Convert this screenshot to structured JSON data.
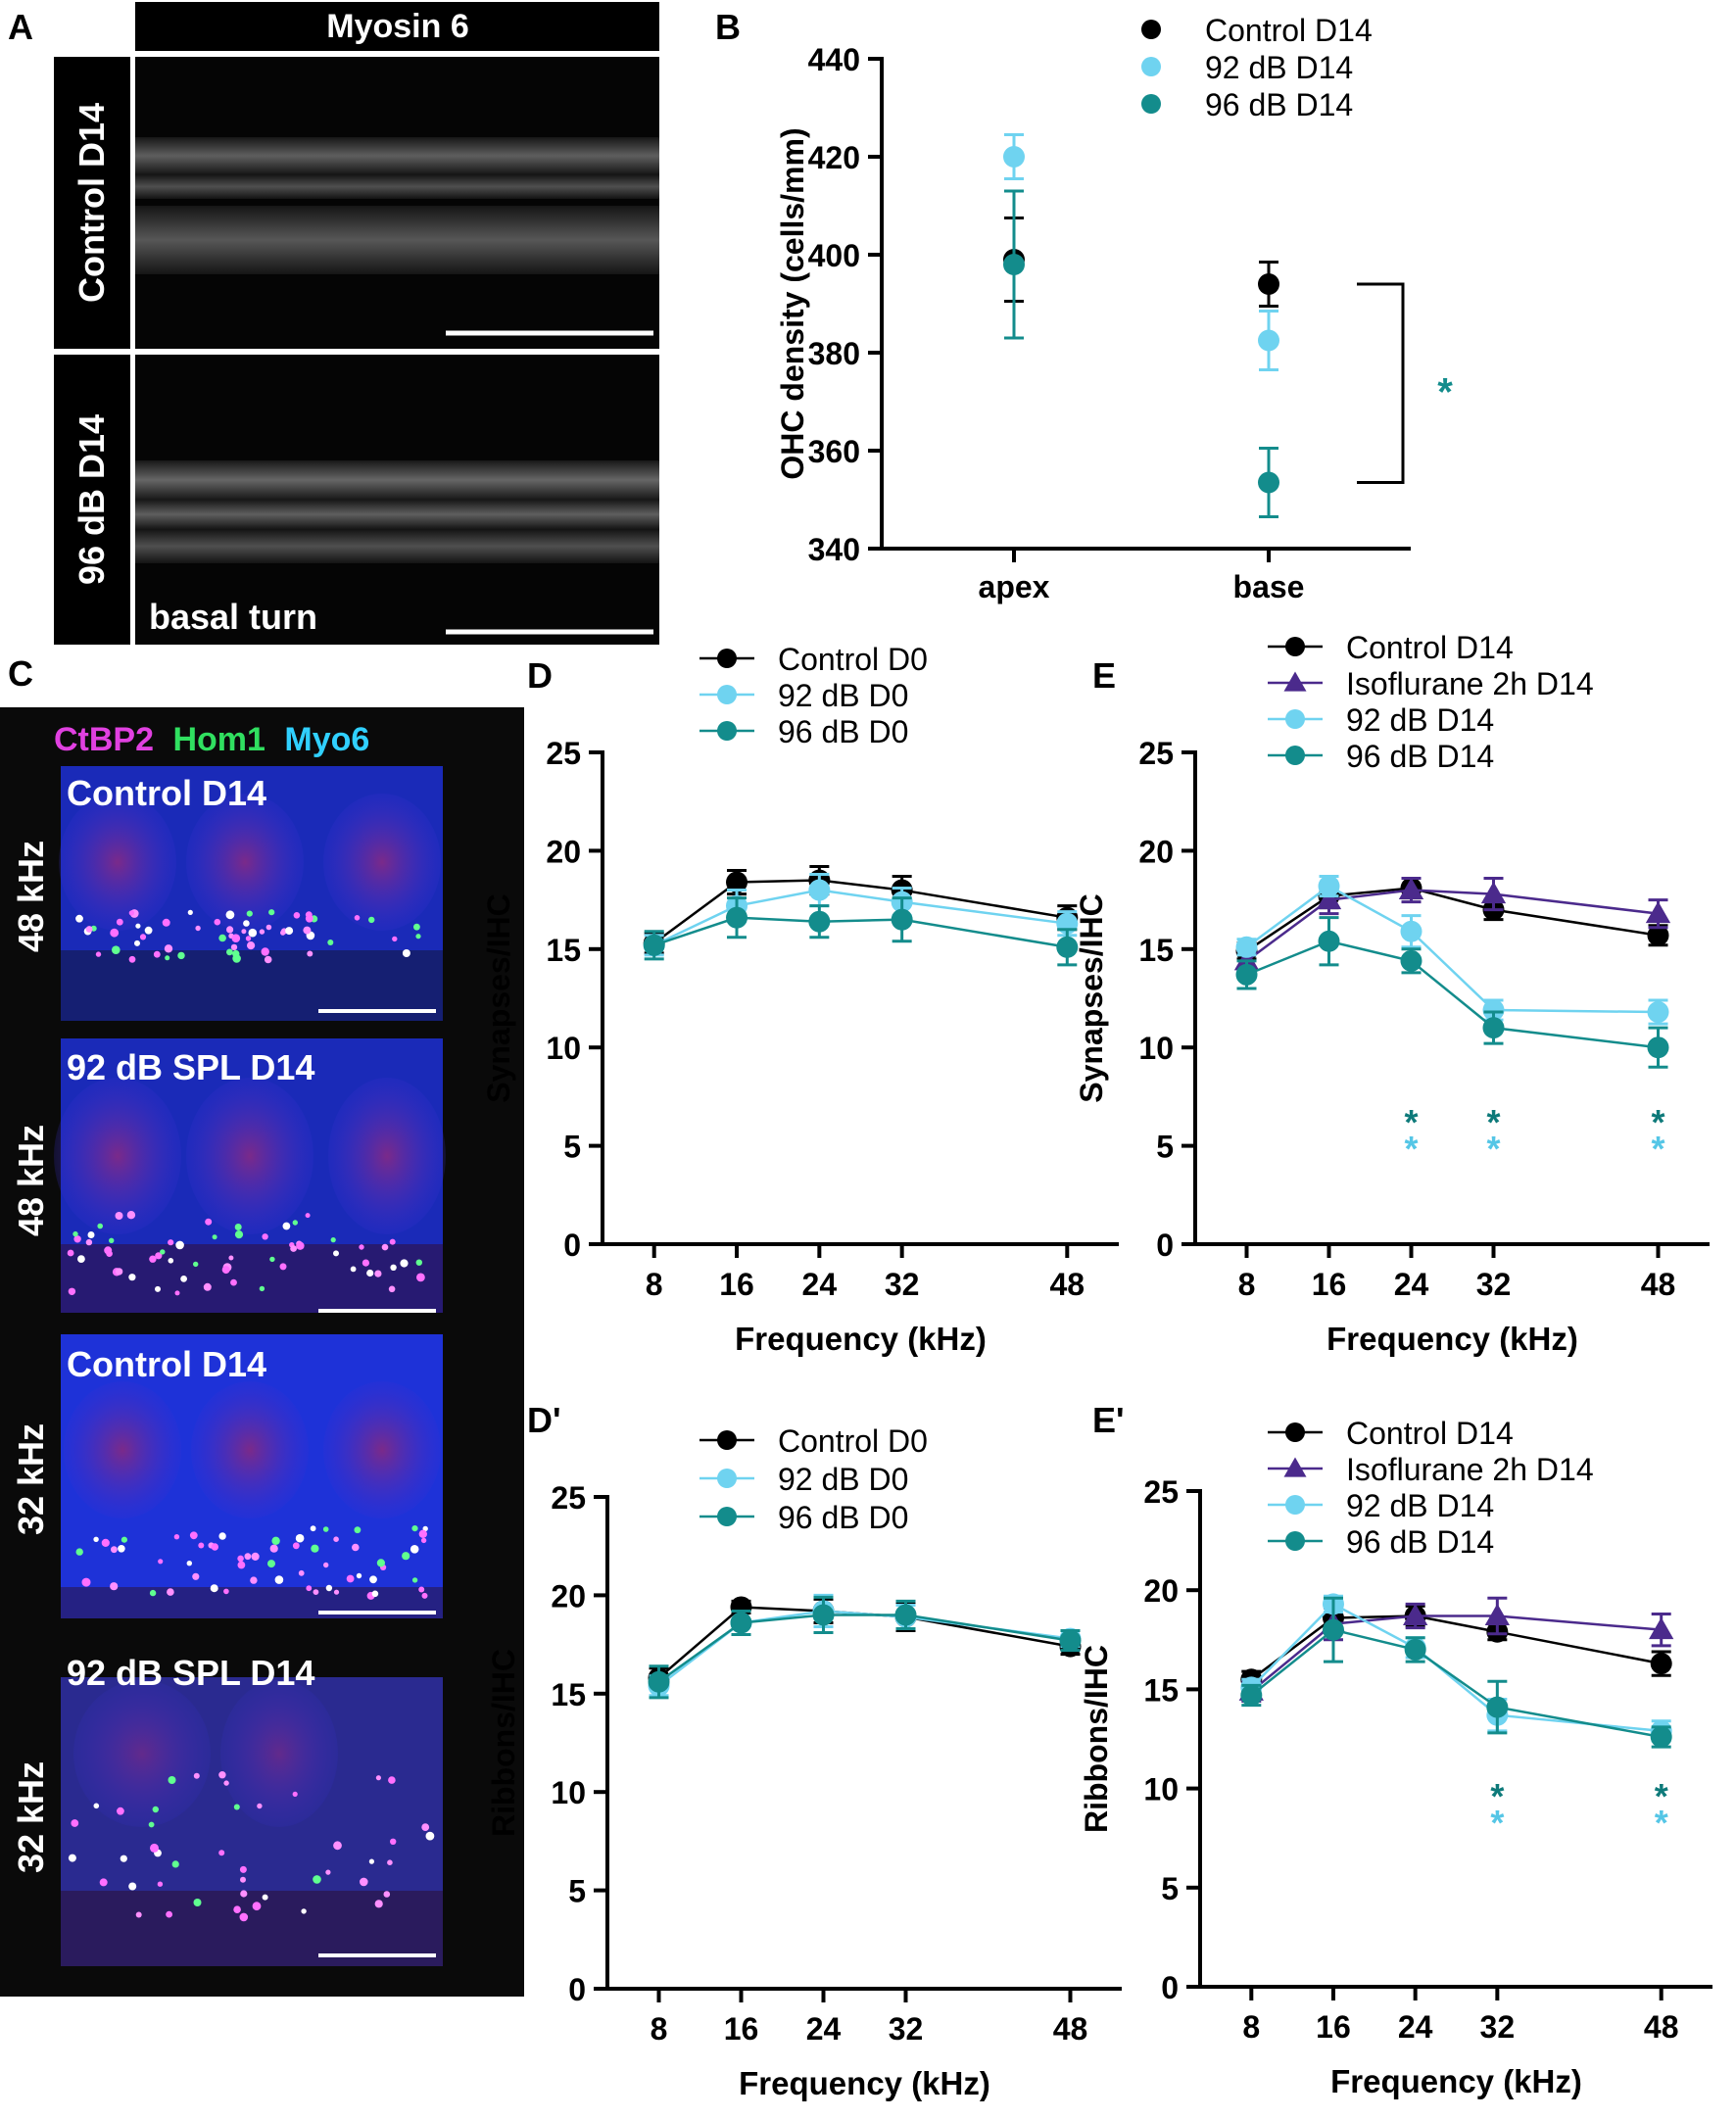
{
  "colors": {
    "control": "#000000",
    "isoflurane": "#4b2a8c",
    "db92": "#6fd3f0",
    "db96": "#138c8c",
    "star_db92": "#55c6e6",
    "star_db96": "#0e7a7a",
    "micrograph_bg": "#0a0a0a"
  },
  "panel_a": {
    "letter": "A",
    "stain": "Myosin 6",
    "rows": [
      "Control D14",
      "96 dB D14"
    ],
    "region": "basal turn"
  },
  "panel_c": {
    "letter": "C",
    "stains": [
      {
        "name": "CtBP2",
        "color": "#e040e0"
      },
      {
        "name": "Hom1",
        "color": "#30e060"
      },
      {
        "name": "Myo6",
        "color": "#30d0ff"
      }
    ],
    "rows": [
      {
        "freq": "48 kHz",
        "condition": "Control D14"
      },
      {
        "freq": "48 kHz",
        "condition": "92 dB SPL D14"
      },
      {
        "freq": "32 kHz",
        "condition": "Control D14"
      },
      {
        "freq": "32 kHz",
        "condition": "92 dB SPL D14"
      }
    ]
  },
  "chart_data": [
    {
      "id": "B",
      "type": "scatter",
      "letter": "B",
      "title": "",
      "ylabel": "OHC density (cells/mm)",
      "xlabel": "",
      "categories": [
        "apex",
        "base"
      ],
      "ylim": [
        340,
        440
      ],
      "yticks": [
        340,
        360,
        380,
        400,
        420,
        440
      ],
      "series": [
        {
          "name": "Control D14",
          "color_key": "control",
          "values": [
            399,
            394
          ],
          "err": [
            8.5,
            4.5
          ]
        },
        {
          "name": "92 dB D14",
          "color_key": "db92",
          "values": [
            420,
            382.5
          ],
          "err": [
            4.5,
            6
          ]
        },
        {
          "name": "96 dB D14",
          "color_key": "db96",
          "values": [
            398,
            353.5
          ],
          "err": [
            15,
            7
          ]
        }
      ],
      "bracket": {
        "category": "base",
        "from": 394,
        "to": 353.5
      },
      "significance": [
        {
          "label": "*",
          "color_key": "db96"
        }
      ]
    },
    {
      "id": "D",
      "type": "line",
      "letter": "D",
      "ylabel": "Synapses/IHC",
      "xlabel": "Frequency (kHz)",
      "x": [
        8,
        16,
        24,
        32,
        48
      ],
      "xticks": [
        8,
        16,
        24,
        32,
        48
      ],
      "xlim": [
        3,
        53
      ],
      "ylim": [
        0,
        25
      ],
      "yticks": [
        0,
        5,
        10,
        15,
        20,
        25
      ],
      "series": [
        {
          "name": "Control D0",
          "color_key": "control",
          "marker": "circle",
          "values": [
            15.3,
            18.4,
            18.5,
            18.0,
            16.6
          ],
          "err": [
            0.5,
            0.6,
            0.7,
            0.7,
            0.6
          ]
        },
        {
          "name": "92 dB D0",
          "color_key": "db92",
          "marker": "circle",
          "values": [
            15.2,
            17.2,
            18.0,
            17.4,
            16.3
          ],
          "err": [
            0.5,
            0.8,
            0.8,
            0.7,
            0.6
          ]
        },
        {
          "name": "96 dB D0",
          "color_key": "db96",
          "marker": "circle",
          "values": [
            15.2,
            16.6,
            16.4,
            16.5,
            15.1
          ],
          "err": [
            0.7,
            1.0,
            0.8,
            1.1,
            0.9
          ]
        }
      ],
      "stars": []
    },
    {
      "id": "E",
      "type": "line",
      "letter": "E",
      "ylabel": "Synapses/IHC",
      "xlabel": "Frequency (kHz)",
      "x": [
        8,
        16,
        24,
        32,
        48
      ],
      "xticks": [
        8,
        16,
        24,
        32,
        48
      ],
      "xlim": [
        3,
        53
      ],
      "ylim": [
        0,
        25
      ],
      "yticks": [
        0,
        5,
        10,
        15,
        20,
        25
      ],
      "series": [
        {
          "name": "Control D14",
          "color_key": "control",
          "marker": "circle",
          "values": [
            14.9,
            17.7,
            18.1,
            17.0,
            15.7
          ],
          "err": [
            0.4,
            0.6,
            0.5,
            0.5,
            0.5
          ]
        },
        {
          "name": "Isoflurane 2h D14",
          "color_key": "isoflurane",
          "marker": "triangle",
          "values": [
            14.4,
            17.5,
            18.0,
            17.8,
            16.8
          ],
          "err": [
            0.5,
            0.7,
            0.6,
            0.8,
            0.7
          ]
        },
        {
          "name": "92 dB D14",
          "color_key": "db92",
          "marker": "circle",
          "values": [
            15.1,
            18.2,
            15.9,
            11.9,
            11.8
          ],
          "err": [
            0.4,
            0.5,
            0.8,
            0.5,
            0.6
          ]
        },
        {
          "name": "96 dB D14",
          "color_key": "db96",
          "marker": "circle",
          "values": [
            13.7,
            15.4,
            14.4,
            11.0,
            10.0
          ],
          "err": [
            0.7,
            1.2,
            0.6,
            0.8,
            1.0
          ]
        }
      ],
      "stars": [
        {
          "x": 24,
          "color_key": "star_db96",
          "label": "*",
          "row": 1
        },
        {
          "x": 24,
          "color_key": "star_db92",
          "label": "*",
          "row": 2
        },
        {
          "x": 32,
          "color_key": "star_db96",
          "label": "*",
          "row": 1
        },
        {
          "x": 32,
          "color_key": "star_db92",
          "label": "*",
          "row": 2
        },
        {
          "x": 48,
          "color_key": "star_db96",
          "label": "*",
          "row": 1
        },
        {
          "x": 48,
          "color_key": "star_db92",
          "label": "*",
          "row": 2
        }
      ]
    },
    {
      "id": "Dp",
      "type": "line",
      "letter": "D'",
      "ylabel": "Ribbons/IHC",
      "xlabel": "Frequency (kHz)",
      "x": [
        8,
        16,
        24,
        32,
        48
      ],
      "xticks": [
        8,
        16,
        24,
        32,
        48
      ],
      "xlim": [
        3,
        53
      ],
      "ylim": [
        0,
        25
      ],
      "yticks": [
        0,
        5,
        10,
        15,
        20,
        25
      ],
      "series": [
        {
          "name": "Control D0",
          "color_key": "control",
          "marker": "circle",
          "values": [
            15.8,
            19.4,
            19.2,
            18.9,
            17.4
          ],
          "err": [
            0.5,
            0.3,
            0.6,
            0.7,
            0.4
          ]
        },
        {
          "name": "92 dB D0",
          "color_key": "db92",
          "marker": "circle",
          "values": [
            15.4,
            18.6,
            19.2,
            18.9,
            17.8
          ],
          "err": [
            0.5,
            0.6,
            0.8,
            0.6,
            0.4
          ]
        },
        {
          "name": "96 dB D0",
          "color_key": "db96",
          "marker": "circle",
          "values": [
            15.6,
            18.6,
            19.0,
            19.0,
            17.7
          ],
          "err": [
            0.8,
            0.6,
            0.9,
            0.7,
            0.5
          ]
        }
      ],
      "stars": []
    },
    {
      "id": "Ep",
      "type": "line",
      "letter": "E'",
      "ylabel": "Ribbons/IHC",
      "xlabel": "Frequency (kHz)",
      "x": [
        8,
        16,
        24,
        32,
        48
      ],
      "xticks": [
        8,
        16,
        24,
        32,
        48
      ],
      "xlim": [
        3,
        53
      ],
      "ylim": [
        0,
        25
      ],
      "yticks": [
        0,
        5,
        10,
        15,
        20,
        25
      ],
      "series": [
        {
          "name": "Control D14",
          "color_key": "control",
          "marker": "circle",
          "values": [
            15.5,
            18.6,
            18.7,
            17.9,
            16.3
          ],
          "err": [
            0.4,
            0.7,
            0.5,
            0.4,
            0.6
          ]
        },
        {
          "name": "Isoflurane 2h D14",
          "color_key": "isoflurane",
          "marker": "triangle",
          "values": [
            14.9,
            18.3,
            18.7,
            18.7,
            18.0
          ],
          "err": [
            0.5,
            0.8,
            0.6,
            0.9,
            0.8
          ]
        },
        {
          "name": "92 dB D14",
          "color_key": "db92",
          "marker": "circle",
          "values": [
            15.1,
            19.3,
            17.1,
            13.7,
            12.9
          ],
          "err": [
            0.4,
            0.4,
            0.5,
            0.8,
            0.5
          ]
        },
        {
          "name": "96 dB D14",
          "color_key": "db96",
          "marker": "circle",
          "values": [
            14.7,
            18.0,
            17.0,
            14.1,
            12.6
          ],
          "err": [
            0.5,
            1.6,
            0.6,
            1.3,
            0.5
          ]
        }
      ],
      "stars": [
        {
          "x": 32,
          "color_key": "star_db96",
          "label": "*",
          "row": 1
        },
        {
          "x": 32,
          "color_key": "star_db92",
          "label": "*",
          "row": 2
        },
        {
          "x": 48,
          "color_key": "star_db96",
          "label": "*",
          "row": 1
        },
        {
          "x": 48,
          "color_key": "star_db92",
          "label": "*",
          "row": 2
        }
      ]
    }
  ]
}
